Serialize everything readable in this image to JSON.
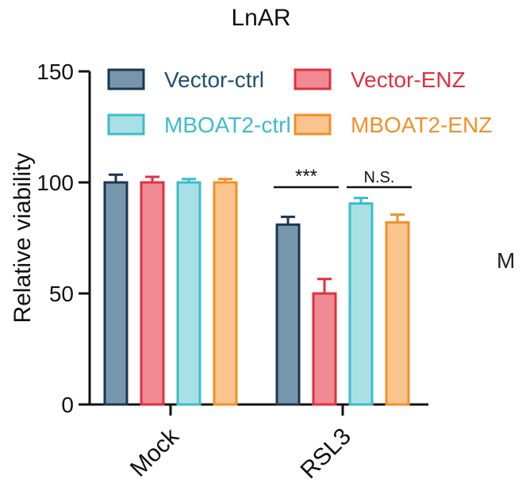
{
  "chart_data": {
    "type": "bar",
    "title": "LnAR",
    "xlabel": "",
    "ylabel": "Relative viability",
    "ylim": [
      0,
      150
    ],
    "yticks": [
      0,
      50,
      100,
      150
    ],
    "categories": [
      "Mock",
      "RSL3"
    ],
    "grid": false,
    "legend_position": "top",
    "series": [
      {
        "name": "Vector-ctrl",
        "values": [
          100,
          81
        ],
        "errors": [
          3.5,
          3.5
        ],
        "fill": "#7896ab",
        "stroke": "#1c3553",
        "label_color": "#1f4e79"
      },
      {
        "name": "Vector-ENZ",
        "values": [
          100,
          50
        ],
        "errors": [
          2.5,
          6.5
        ],
        "fill": "#f08a93",
        "stroke": "#e0303f",
        "label_color": "#e0303f"
      },
      {
        "name": "MBOAT2-ctrl",
        "values": [
          100,
          90.5
        ],
        "errors": [
          1.5,
          2.5
        ],
        "fill": "#a9e0e6",
        "stroke": "#3cbccb",
        "label_color": "#3cbccb"
      },
      {
        "name": "MBOAT2-ENZ",
        "values": [
          100,
          82
        ],
        "errors": [
          1.5,
          3.5
        ],
        "fill": "#f9c48d",
        "stroke": "#f0902a",
        "label_color": "#f0902a"
      }
    ],
    "annotations": [
      {
        "text": "***",
        "category": "RSL3",
        "between": [
          "Vector-ctrl",
          "Vector-ENZ"
        ]
      },
      {
        "text": "N.S.",
        "category": "RSL3",
        "between": [
          "MBOAT2-ctrl",
          "MBOAT2-ENZ"
        ]
      }
    ]
  },
  "clipped_text": "M"
}
